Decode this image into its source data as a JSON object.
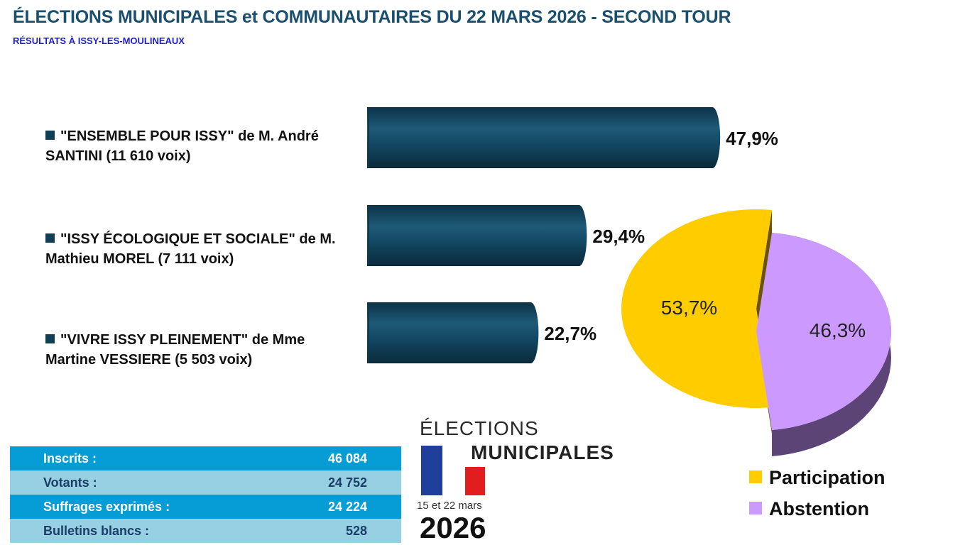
{
  "header": {
    "title": "ÉLECTIONS MUNICIPALES et COMMUNAUTAIRES DU 22 MARS 2026 - SECOND TOUR",
    "subtitle": "RÉSULTATS À ISSY-LES-MOULINEAUX"
  },
  "chart_data": [
    {
      "type": "bar",
      "categories": [
        "\"ENSEMBLE POUR ISSY\" de M. André SANTINI (11 610 voix)",
        "\"ISSY ÉCOLOGIQUE ET SOCIALE\" de M. Mathieu MOREL (7 111 voix)",
        "\"VIVRE ISSY PLEINEMENT\" de Mme Martine VESSIERE (5 503 voix)"
      ],
      "values": [
        47.9,
        29.4,
        22.7
      ],
      "value_labels": [
        "47,9%",
        "29,4%",
        "22,7%"
      ],
      "orientation": "horizontal",
      "color": "#0f3e55"
    },
    {
      "type": "pie",
      "labels": [
        "Participation",
        "Abstention"
      ],
      "values": [
        53.7,
        46.3
      ],
      "value_labels": [
        "53,7%",
        "46,3%"
      ],
      "colors": [
        "#ffcc00",
        "#cc99ff"
      ],
      "legend": "bottom-right"
    }
  ],
  "stats": [
    {
      "label": "Inscrits :",
      "value": "46 084"
    },
    {
      "label": "Votants :",
      "value": "24 752"
    },
    {
      "label": "Suffrages exprimés :",
      "value": "24 224"
    },
    {
      "label": "Bulletins blancs :",
      "value": "528"
    }
  ],
  "logo": {
    "line1": "ÉLECTIONS",
    "line2": "MUNICIPALES",
    "dates": "15 et 22 mars",
    "year": "2026"
  }
}
